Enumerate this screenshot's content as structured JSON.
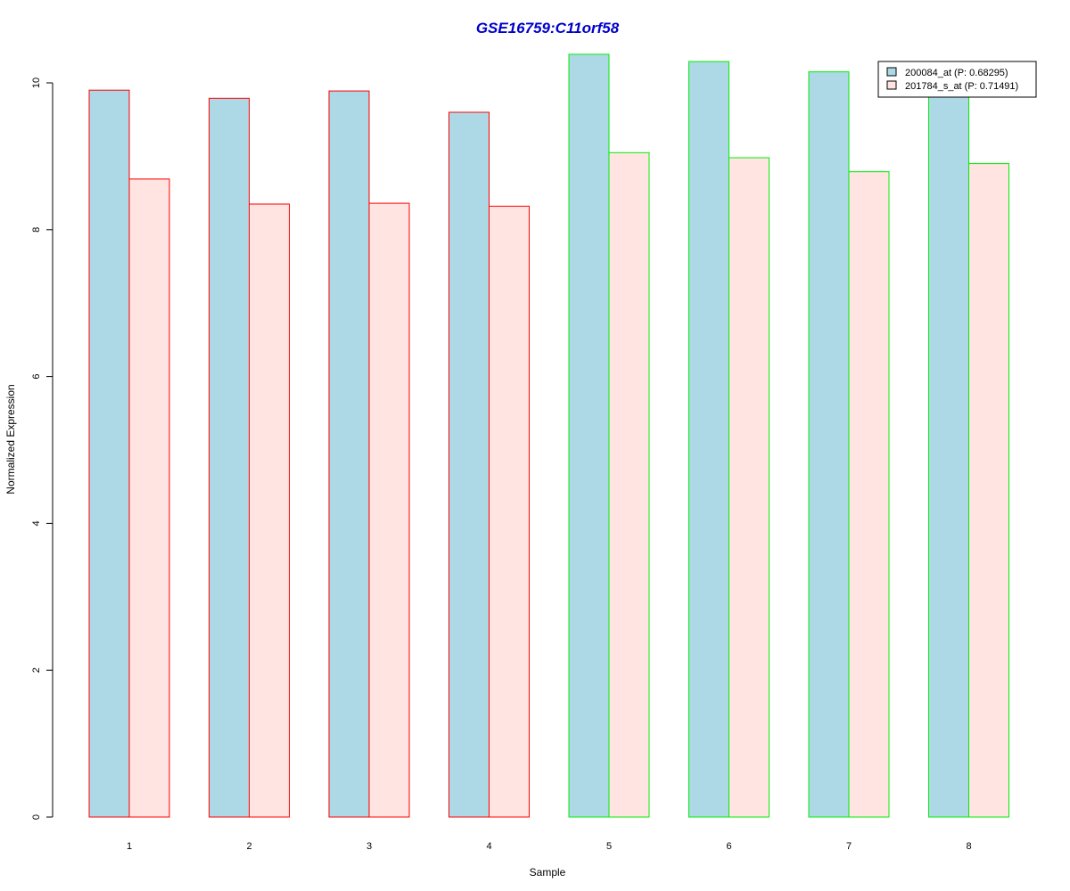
{
  "chart_data": {
    "type": "bar",
    "title": "GSE16759:C11orf58",
    "xlabel": "Sample",
    "ylabel": "Normalized Expression",
    "categories": [
      "1",
      "2",
      "3",
      "4",
      "5",
      "6",
      "7",
      "8"
    ],
    "yticks": [
      "0",
      "2",
      "4",
      "6",
      "8",
      "10"
    ],
    "ylim": [
      0,
      10.4
    ],
    "grid": false,
    "legend_position": "top-right",
    "series": [
      {
        "name": "200084_at (P: 0.68295)",
        "fill": "#add8e6",
        "values": [
          9.9,
          9.79,
          9.89,
          9.6,
          10.39,
          10.29,
          10.15,
          9.85
        ]
      },
      {
        "name": "201784_s_at (P: 0.71491)",
        "fill": "#ffe4e1",
        "values": [
          8.69,
          8.35,
          8.36,
          8.32,
          9.05,
          8.98,
          8.79,
          8.9
        ]
      }
    ],
    "group_border_colors": [
      "#ff0000",
      "#ff0000",
      "#ff0000",
      "#ff0000",
      "#00ee00",
      "#00ee00",
      "#00ee00",
      "#00ee00"
    ]
  }
}
